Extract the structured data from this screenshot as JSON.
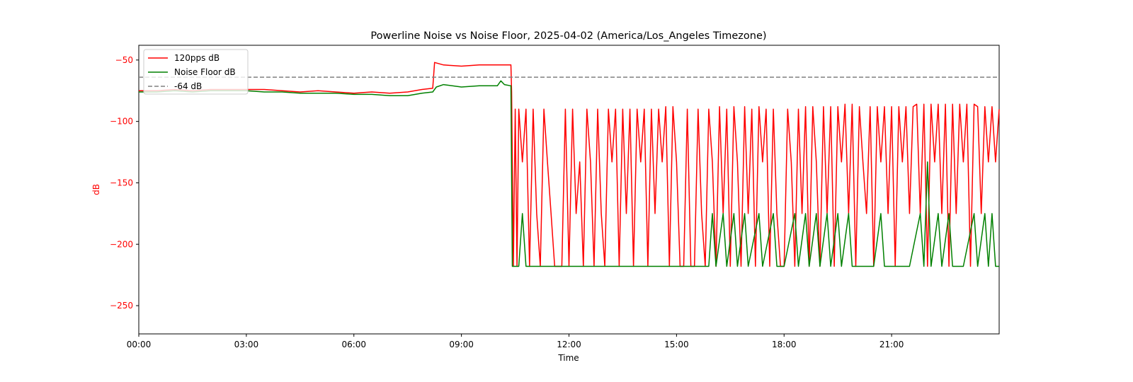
{
  "chart_data": {
    "type": "line",
    "title": "Powerline Noise vs Noise Floor, 2025-04-02 (America/Los_Angeles Timezone)",
    "xlabel": "Time",
    "ylabel": "dB",
    "xlim_hours": [
      0,
      24
    ],
    "ylim": [
      -273,
      -38
    ],
    "x_ticks": [
      {
        "value": 0,
        "label": "00:00"
      },
      {
        "value": 3,
        "label": "03:00"
      },
      {
        "value": 6,
        "label": "06:00"
      },
      {
        "value": 9,
        "label": "09:00"
      },
      {
        "value": 12,
        "label": "12:00"
      },
      {
        "value": 15,
        "label": "15:00"
      },
      {
        "value": 18,
        "label": "18:00"
      },
      {
        "value": 21,
        "label": "21:00"
      }
    ],
    "y_ticks": [
      {
        "value": -50,
        "label": "−50"
      },
      {
        "value": -100,
        "label": "−100"
      },
      {
        "value": -150,
        "label": "−150"
      },
      {
        "value": -200,
        "label": "−200"
      },
      {
        "value": -250,
        "label": "−250"
      }
    ],
    "grid": false,
    "legend_position": "top-left",
    "series": [
      {
        "name": "120pps dB",
        "color": "#ff0000",
        "style": "solid",
        "points": [
          [
            0.0,
            -75
          ],
          [
            0.5,
            -75
          ],
          [
            1.0,
            -74
          ],
          [
            1.5,
            -75
          ],
          [
            2.0,
            -74
          ],
          [
            2.5,
            -74
          ],
          [
            3.0,
            -74
          ],
          [
            3.5,
            -74
          ],
          [
            4.0,
            -75
          ],
          [
            4.5,
            -76
          ],
          [
            5.0,
            -75
          ],
          [
            5.5,
            -76
          ],
          [
            6.0,
            -77
          ],
          [
            6.5,
            -76
          ],
          [
            7.0,
            -77
          ],
          [
            7.5,
            -76
          ],
          [
            7.9,
            -74
          ],
          [
            8.2,
            -73
          ],
          [
            8.25,
            -52
          ],
          [
            8.5,
            -54
          ],
          [
            9.0,
            -55
          ],
          [
            9.5,
            -54
          ],
          [
            10.0,
            -54
          ],
          [
            10.38,
            -54
          ],
          [
            10.4,
            -76
          ],
          [
            10.45,
            -218
          ],
          [
            10.5,
            -90
          ],
          [
            10.55,
            -218
          ],
          [
            10.6,
            -90
          ],
          [
            10.7,
            -133
          ],
          [
            10.8,
            -90
          ],
          [
            10.9,
            -218
          ],
          [
            11.0,
            -90
          ],
          [
            11.1,
            -175
          ],
          [
            11.2,
            -218
          ],
          [
            11.3,
            -90
          ],
          [
            11.4,
            -133
          ],
          [
            11.5,
            -175
          ],
          [
            11.6,
            -218
          ],
          [
            11.8,
            -218
          ],
          [
            11.9,
            -90
          ],
          [
            12.0,
            -218
          ],
          [
            12.1,
            -90
          ],
          [
            12.2,
            -175
          ],
          [
            12.3,
            -133
          ],
          [
            12.4,
            -218
          ],
          [
            12.5,
            -90
          ],
          [
            12.6,
            -133
          ],
          [
            12.7,
            -218
          ],
          [
            12.8,
            -90
          ],
          [
            12.9,
            -175
          ],
          [
            13.0,
            -218
          ],
          [
            13.1,
            -90
          ],
          [
            13.2,
            -133
          ],
          [
            13.3,
            -90
          ],
          [
            13.4,
            -218
          ],
          [
            13.5,
            -90
          ],
          [
            13.6,
            -175
          ],
          [
            13.7,
            -90
          ],
          [
            13.8,
            -218
          ],
          [
            13.9,
            -90
          ],
          [
            14.0,
            -133
          ],
          [
            14.1,
            -90
          ],
          [
            14.2,
            -218
          ],
          [
            14.3,
            -90
          ],
          [
            14.4,
            -175
          ],
          [
            14.5,
            -90
          ],
          [
            14.6,
            -133
          ],
          [
            14.7,
            -88
          ],
          [
            14.8,
            -218
          ],
          [
            14.9,
            -88
          ],
          [
            15.0,
            -133
          ],
          [
            15.1,
            -218
          ],
          [
            15.2,
            -218
          ],
          [
            15.3,
            -90
          ],
          [
            15.4,
            -218
          ],
          [
            15.5,
            -218
          ],
          [
            15.6,
            -90
          ],
          [
            15.7,
            -175
          ],
          [
            15.8,
            -218
          ],
          [
            15.9,
            -90
          ],
          [
            16.0,
            -133
          ],
          [
            16.1,
            -218
          ],
          [
            16.2,
            -88
          ],
          [
            16.3,
            -175
          ],
          [
            16.4,
            -90
          ],
          [
            16.5,
            -218
          ],
          [
            16.6,
            -88
          ],
          [
            16.7,
            -133
          ],
          [
            16.8,
            -218
          ],
          [
            16.9,
            -88
          ],
          [
            17.0,
            -175
          ],
          [
            17.1,
            -90
          ],
          [
            17.2,
            -218
          ],
          [
            17.3,
            -88
          ],
          [
            17.4,
            -133
          ],
          [
            17.5,
            -90
          ],
          [
            17.6,
            -218
          ],
          [
            17.7,
            -90
          ],
          [
            17.8,
            -175
          ],
          [
            17.9,
            -218
          ],
          [
            18.0,
            -218
          ],
          [
            18.1,
            -90
          ],
          [
            18.2,
            -133
          ],
          [
            18.3,
            -218
          ],
          [
            18.4,
            -90
          ],
          [
            18.5,
            -175
          ],
          [
            18.6,
            -88
          ],
          [
            18.7,
            -218
          ],
          [
            18.8,
            -88
          ],
          [
            18.9,
            -133
          ],
          [
            19.0,
            -218
          ],
          [
            19.1,
            -88
          ],
          [
            19.2,
            -175
          ],
          [
            19.3,
            -88
          ],
          [
            19.4,
            -218
          ],
          [
            19.5,
            -88
          ],
          [
            19.6,
            -133
          ],
          [
            19.7,
            -86
          ],
          [
            19.8,
            -175
          ],
          [
            19.9,
            -86
          ],
          [
            20.0,
            -218
          ],
          [
            20.1,
            -88
          ],
          [
            20.2,
            -133
          ],
          [
            20.3,
            -175
          ],
          [
            20.4,
            -88
          ],
          [
            20.5,
            -218
          ],
          [
            20.6,
            -88
          ],
          [
            20.7,
            -133
          ],
          [
            20.8,
            -88
          ],
          [
            20.9,
            -175
          ],
          [
            21.0,
            -88
          ],
          [
            21.1,
            -218
          ],
          [
            21.2,
            -88
          ],
          [
            21.3,
            -133
          ],
          [
            21.4,
            -88
          ],
          [
            21.5,
            -175
          ],
          [
            21.6,
            -88
          ],
          [
            21.7,
            -86
          ],
          [
            21.8,
            -175
          ],
          [
            21.9,
            -86
          ],
          [
            22.0,
            -218
          ],
          [
            22.1,
            -86
          ],
          [
            22.2,
            -133
          ],
          [
            22.3,
            -86
          ],
          [
            22.4,
            -175
          ],
          [
            22.5,
            -86
          ],
          [
            22.6,
            -218
          ],
          [
            22.7,
            -86
          ],
          [
            22.8,
            -175
          ],
          [
            22.9,
            -86
          ],
          [
            23.0,
            -133
          ],
          [
            23.1,
            -86
          ],
          [
            23.2,
            -218
          ],
          [
            23.3,
            -86
          ],
          [
            23.4,
            -88
          ],
          [
            23.5,
            -175
          ],
          [
            23.6,
            -88
          ],
          [
            23.7,
            -133
          ],
          [
            23.8,
            -88
          ],
          [
            23.9,
            -133
          ],
          [
            24.0,
            -90
          ]
        ]
      },
      {
        "name": "Noise Floor dB",
        "color": "#008000",
        "style": "solid",
        "points": [
          [
            0.0,
            -76
          ],
          [
            0.5,
            -76
          ],
          [
            1.0,
            -75
          ],
          [
            1.5,
            -76
          ],
          [
            2.0,
            -75
          ],
          [
            2.5,
            -75
          ],
          [
            3.0,
            -75
          ],
          [
            3.5,
            -76
          ],
          [
            4.0,
            -76
          ],
          [
            4.5,
            -77
          ],
          [
            5.0,
            -77
          ],
          [
            5.5,
            -77
          ],
          [
            6.0,
            -78
          ],
          [
            6.5,
            -78
          ],
          [
            7.0,
            -79
          ],
          [
            7.5,
            -79
          ],
          [
            7.9,
            -77
          ],
          [
            8.2,
            -76
          ],
          [
            8.3,
            -72
          ],
          [
            8.5,
            -70
          ],
          [
            9.0,
            -72
          ],
          [
            9.5,
            -71
          ],
          [
            10.0,
            -71
          ],
          [
            10.1,
            -67
          ],
          [
            10.2,
            -70
          ],
          [
            10.38,
            -71
          ],
          [
            10.42,
            -218
          ],
          [
            10.6,
            -218
          ],
          [
            10.7,
            -175
          ],
          [
            10.8,
            -218
          ],
          [
            11.0,
            -218
          ],
          [
            11.2,
            -218
          ],
          [
            11.5,
            -218
          ],
          [
            12.0,
            -218
          ],
          [
            12.5,
            -218
          ],
          [
            13.0,
            -218
          ],
          [
            13.5,
            -218
          ],
          [
            14.0,
            -218
          ],
          [
            14.5,
            -218
          ],
          [
            15.0,
            -218
          ],
          [
            15.5,
            -218
          ],
          [
            15.9,
            -218
          ],
          [
            16.0,
            -175
          ],
          [
            16.1,
            -218
          ],
          [
            16.3,
            -175
          ],
          [
            16.4,
            -218
          ],
          [
            16.6,
            -175
          ],
          [
            16.7,
            -218
          ],
          [
            16.9,
            -175
          ],
          [
            17.0,
            -218
          ],
          [
            17.3,
            -175
          ],
          [
            17.4,
            -218
          ],
          [
            17.7,
            -175
          ],
          [
            17.8,
            -218
          ],
          [
            18.0,
            -218
          ],
          [
            18.3,
            -175
          ],
          [
            18.4,
            -218
          ],
          [
            18.6,
            -175
          ],
          [
            18.7,
            -218
          ],
          [
            18.9,
            -175
          ],
          [
            19.0,
            -218
          ],
          [
            19.2,
            -175
          ],
          [
            19.3,
            -218
          ],
          [
            19.5,
            -175
          ],
          [
            19.6,
            -218
          ],
          [
            19.8,
            -175
          ],
          [
            19.9,
            -218
          ],
          [
            20.2,
            -218
          ],
          [
            20.5,
            -218
          ],
          [
            20.7,
            -175
          ],
          [
            20.8,
            -218
          ],
          [
            21.0,
            -218
          ],
          [
            21.5,
            -218
          ],
          [
            21.8,
            -175
          ],
          [
            21.9,
            -218
          ],
          [
            22.0,
            -133
          ],
          [
            22.1,
            -218
          ],
          [
            22.3,
            -175
          ],
          [
            22.4,
            -218
          ],
          [
            22.6,
            -175
          ],
          [
            22.7,
            -218
          ],
          [
            23.0,
            -218
          ],
          [
            23.3,
            -175
          ],
          [
            23.4,
            -218
          ],
          [
            23.6,
            -175
          ],
          [
            23.7,
            -218
          ],
          [
            23.8,
            -175
          ],
          [
            23.9,
            -218
          ],
          [
            24.0,
            -218
          ]
        ]
      },
      {
        "name": "-64 dB",
        "color": "#808080",
        "style": "dashed",
        "points": [
          [
            0,
            -64
          ],
          [
            24,
            -64
          ]
        ]
      }
    ]
  }
}
